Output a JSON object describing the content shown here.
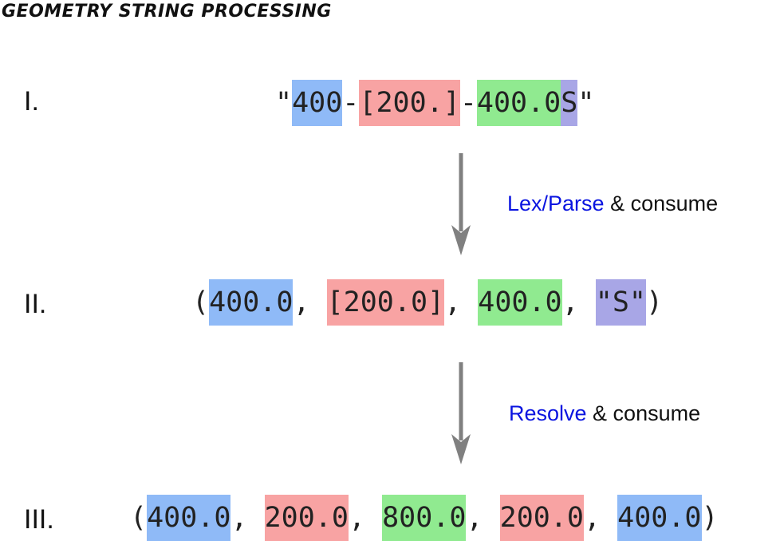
{
  "title": "Geometry string processing",
  "steps": {
    "one": {
      "label": "I.",
      "tokens": [
        "\"",
        "400",
        "-",
        "[200.]",
        "-",
        "400.0",
        "S",
        "\""
      ]
    },
    "two": {
      "label": "II.",
      "tokens": [
        "(",
        "400.0",
        ", ",
        "[200.0]",
        ", ",
        "400.0",
        ", ",
        "\"S\"",
        ")"
      ]
    },
    "three": {
      "label": "III.",
      "tokens": [
        "(",
        "400.0",
        ", ",
        "200.0",
        ", ",
        "800.0",
        ", ",
        "200.0",
        ", ",
        "400.0",
        ")"
      ]
    }
  },
  "arrows": {
    "first": {
      "highlight": "Lex/Parse",
      "rest": " & consume"
    },
    "second": {
      "highlight": "Resolve",
      "rest": " & consume"
    }
  },
  "colors": {
    "blue": "#8fbaf7",
    "red": "#f8a3a3",
    "green": "#90ea90",
    "purple": "#a8a6e6",
    "caption_highlight": "#0a14e0",
    "arrow": "#808080"
  }
}
